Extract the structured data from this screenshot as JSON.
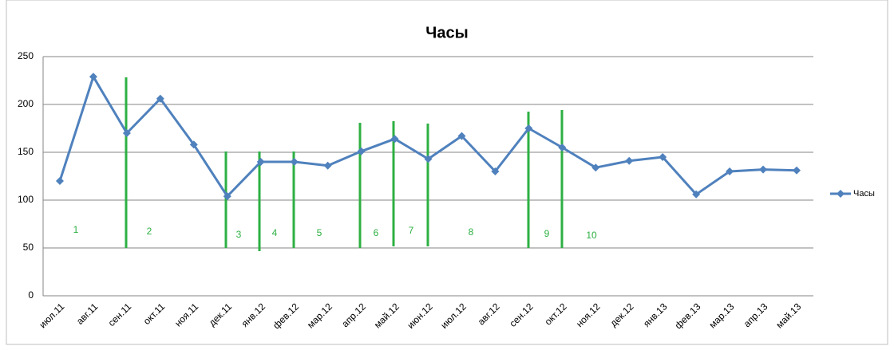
{
  "chart_data": {
    "type": "line",
    "title": "Часы",
    "categories": [
      "июл.11",
      "авг.11",
      "сен.11",
      "окт.11",
      "ноя.11",
      "дек.11",
      "янв.12",
      "фев.12",
      "мар.12",
      "апр.12",
      "май.12",
      "июн.12",
      "июл.12",
      "авг.12",
      "сен.12",
      "окт.12",
      "ноя.12",
      "дек.12",
      "янв.13",
      "фев.13",
      "мар.13",
      "апр.13",
      "май.13"
    ],
    "series": [
      {
        "name": "Часы",
        "color": "#4f81bd",
        "values": [
          120,
          229,
          170,
          206,
          158,
          104,
          140,
          140,
          136,
          151,
          164,
          143,
          167,
          130,
          175,
          155,
          134,
          141,
          145,
          106,
          130,
          132,
          131
        ]
      }
    ],
    "ylim": [
      0,
      250
    ],
    "yticks": [
      0,
      50,
      100,
      150,
      200,
      250
    ],
    "grid": true,
    "legend": "right",
    "annotations": [
      "1",
      "2",
      "3",
      "4",
      "5",
      "6",
      "7",
      "8",
      "9",
      "10"
    ]
  }
}
